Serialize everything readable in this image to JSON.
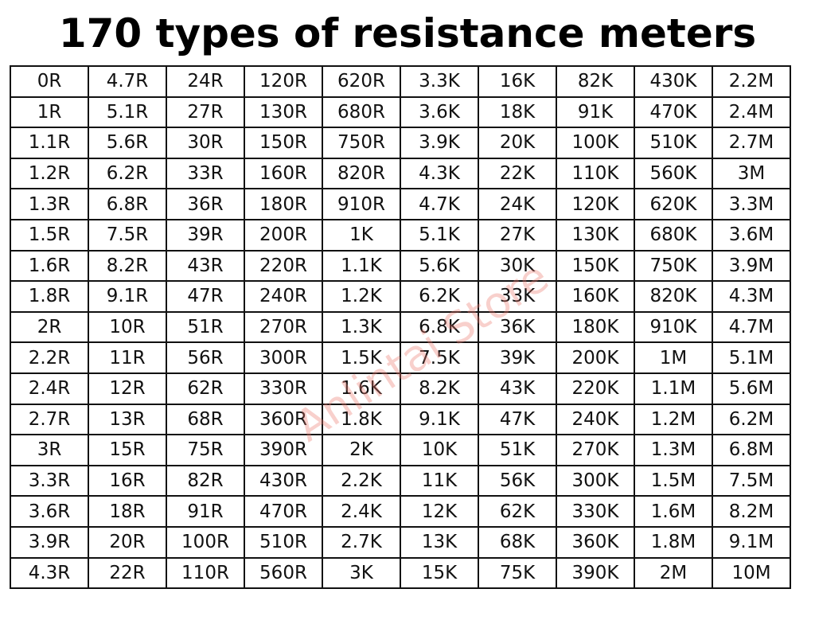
{
  "title": "170 types of resistance meters",
  "watermark": "Anlintai Store",
  "table": {
    "rows": [
      [
        "0R",
        "4.7R",
        "24R",
        "120R",
        "620R",
        "3.3K",
        "16K",
        "82K",
        "430K",
        "2.2M"
      ],
      [
        "1R",
        "5.1R",
        "27R",
        "130R",
        "680R",
        "3.6K",
        "18K",
        "91K",
        "470K",
        "2.4M"
      ],
      [
        "1.1R",
        "5.6R",
        "30R",
        "150R",
        "750R",
        "3.9K",
        "20K",
        "100K",
        "510K",
        "2.7M"
      ],
      [
        "1.2R",
        "6.2R",
        "33R",
        "160R",
        "820R",
        "4.3K",
        "22K",
        "110K",
        "560K",
        "3M"
      ],
      [
        "1.3R",
        "6.8R",
        "36R",
        "180R",
        "910R",
        "4.7K",
        "24K",
        "120K",
        "620K",
        "3.3M"
      ],
      [
        "1.5R",
        "7.5R",
        "39R",
        "200R",
        "1K",
        "5.1K",
        "27K",
        "130K",
        "680K",
        "3.6M"
      ],
      [
        "1.6R",
        "8.2R",
        "43R",
        "220R",
        "1.1K",
        "5.6K",
        "30K",
        "150K",
        "750K",
        "3.9M"
      ],
      [
        "1.8R",
        "9.1R",
        "47R",
        "240R",
        "1.2K",
        "6.2K",
        "33K",
        "160K",
        "820K",
        "4.3M"
      ],
      [
        "2R",
        "10R",
        "51R",
        "270R",
        "1.3K",
        "6.8K",
        "36K",
        "180K",
        "910K",
        "4.7M"
      ],
      [
        "2.2R",
        "11R",
        "56R",
        "300R",
        "1.5K",
        "7.5K",
        "39K",
        "200K",
        "1M",
        "5.1M"
      ],
      [
        "2.4R",
        "12R",
        "62R",
        "330R",
        "1.6K",
        "8.2K",
        "43K",
        "220K",
        "1.1M",
        "5.6M"
      ],
      [
        "2.7R",
        "13R",
        "68R",
        "360R",
        "1.8K",
        "9.1K",
        "47K",
        "240K",
        "1.2M",
        "6.2M"
      ],
      [
        "3R",
        "15R",
        "75R",
        "390R",
        "2K",
        "10K",
        "51K",
        "270K",
        "1.3M",
        "6.8M"
      ],
      [
        "3.3R",
        "16R",
        "82R",
        "430R",
        "2.2K",
        "11K",
        "56K",
        "300K",
        "1.5M",
        "7.5M"
      ],
      [
        "3.6R",
        "18R",
        "91R",
        "470R",
        "2.4K",
        "12K",
        "62K",
        "330K",
        "1.6M",
        "8.2M"
      ],
      [
        "3.9R",
        "20R",
        "100R",
        "510R",
        "2.7K",
        "13K",
        "68K",
        "360K",
        "1.8M",
        "9.1M"
      ],
      [
        "4.3R",
        "22R",
        "110R",
        "560R",
        "3K",
        "15K",
        "75K",
        "390K",
        "2M",
        "10M"
      ]
    ]
  }
}
